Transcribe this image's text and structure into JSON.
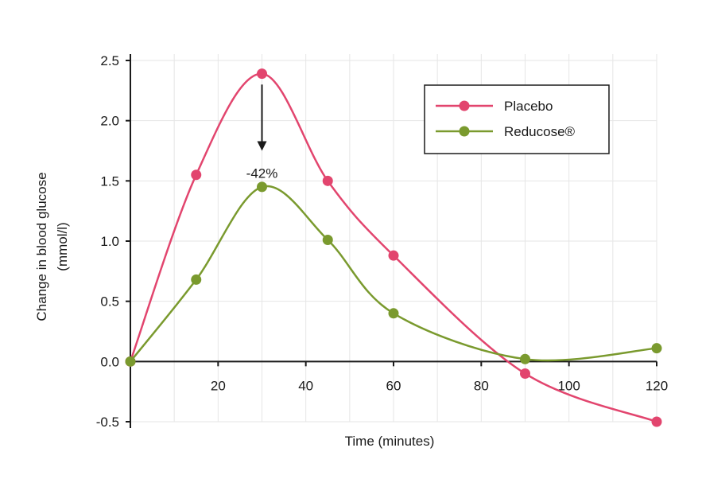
{
  "chart_data": {
    "type": "line",
    "title": "",
    "xlabel": "Time (minutes)",
    "ylabel": [
      "Change in blood glucose",
      "(mmol/l)"
    ],
    "xlim": [
      0,
      120
    ],
    "ylim": [
      -0.5,
      2.5
    ],
    "xticks": [
      20,
      40,
      60,
      80,
      100,
      120
    ],
    "yticks": [
      -0.5,
      0.0,
      0.5,
      1.0,
      1.5,
      2.0,
      2.5
    ],
    "ytick_labels": [
      "-0.5",
      "0.0",
      "0.5",
      "1.0",
      "1.5",
      "2.0",
      "2.5"
    ],
    "grid": true,
    "legend_position": "top-right",
    "series": [
      {
        "name": "Placebo",
        "color": "#e2456e",
        "x": [
          0,
          15,
          30,
          45,
          60,
          90,
          120
        ],
        "y": [
          0.0,
          1.55,
          2.39,
          1.5,
          0.88,
          -0.1,
          -0.5
        ]
      },
      {
        "name": "Reducose®",
        "color": "#7a9a2e",
        "x": [
          0,
          15,
          30,
          45,
          60,
          90,
          120
        ],
        "y": [
          0.0,
          0.68,
          1.45,
          1.01,
          0.4,
          0.02,
          0.11
        ]
      }
    ],
    "annotations": [
      {
        "text": "-42%",
        "x": 30,
        "arrow_from": 2.3,
        "arrow_to": 1.75
      }
    ]
  }
}
